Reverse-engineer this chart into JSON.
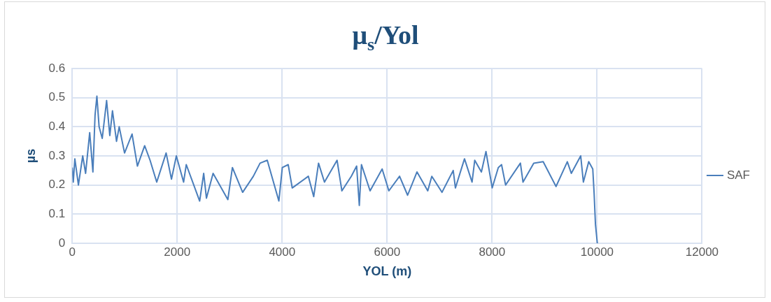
{
  "chart_data": {
    "type": "line",
    "title": "μ$_{s}$/Yol",
    "xlabel": "YOL (m)",
    "ylabel": "µs",
    "x": [
      0,
      20,
      50,
      118,
      200,
      255,
      333,
      394,
      435,
      470,
      512,
      572,
      655,
      716,
      767,
      844,
      895,
      997,
      1140,
      1242,
      1380,
      1483,
      1610,
      1789,
      1891,
      1984,
      2122,
      2173,
      2428,
      2505,
      2557,
      2684,
      2965,
      3052,
      3247,
      3451,
      3579,
      3716,
      3937,
      4003,
      4115,
      4192,
      4499,
      4601,
      4693,
      4806,
      5046,
      5138,
      5317,
      5419,
      5470,
      5511,
      5675,
      5905,
      6033,
      6237,
      6390,
      6569,
      6774,
      6851,
      7045,
      7259,
      7301,
      7474,
      7618,
      7669,
      7796,
      7883,
      8002,
      8118,
      8180,
      8257,
      8539,
      8589,
      8793,
      8973,
      9218,
      9433,
      9509,
      9688,
      9739,
      9841,
      9918,
      9944,
      9969,
      10005
    ],
    "series": [
      {
        "name": "SAF",
        "color": "#4a7ebb",
        "values": [
          0.26,
          0.21,
          0.29,
          0.2,
          0.3,
          0.24,
          0.38,
          0.245,
          0.44,
          0.505,
          0.4,
          0.36,
          0.49,
          0.37,
          0.455,
          0.35,
          0.4,
          0.31,
          0.375,
          0.265,
          0.335,
          0.285,
          0.21,
          0.31,
          0.22,
          0.3,
          0.21,
          0.27,
          0.145,
          0.24,
          0.155,
          0.24,
          0.15,
          0.26,
          0.175,
          0.23,
          0.275,
          0.285,
          0.145,
          0.26,
          0.27,
          0.19,
          0.23,
          0.16,
          0.275,
          0.21,
          0.285,
          0.18,
          0.23,
          0.265,
          0.13,
          0.27,
          0.18,
          0.255,
          0.18,
          0.23,
          0.165,
          0.245,
          0.18,
          0.23,
          0.175,
          0.25,
          0.19,
          0.29,
          0.21,
          0.285,
          0.245,
          0.315,
          0.19,
          0.26,
          0.27,
          0.2,
          0.275,
          0.21,
          0.275,
          0.28,
          0.195,
          0.28,
          0.24,
          0.3,
          0.21,
          0.28,
          0.255,
          0.17,
          0.065,
          0
        ]
      }
    ],
    "xlim": [
      0,
      12000
    ],
    "xticks": [
      0,
      2000,
      4000,
      6000,
      8000,
      10000,
      12000
    ],
    "ylim": [
      0,
      0.6
    ],
    "yticks": [
      0,
      0.1,
      0.2,
      0.3,
      0.4,
      0.5,
      0.6
    ],
    "grid": true,
    "legend": "right",
    "marker": "none",
    "line_style": "solid"
  }
}
